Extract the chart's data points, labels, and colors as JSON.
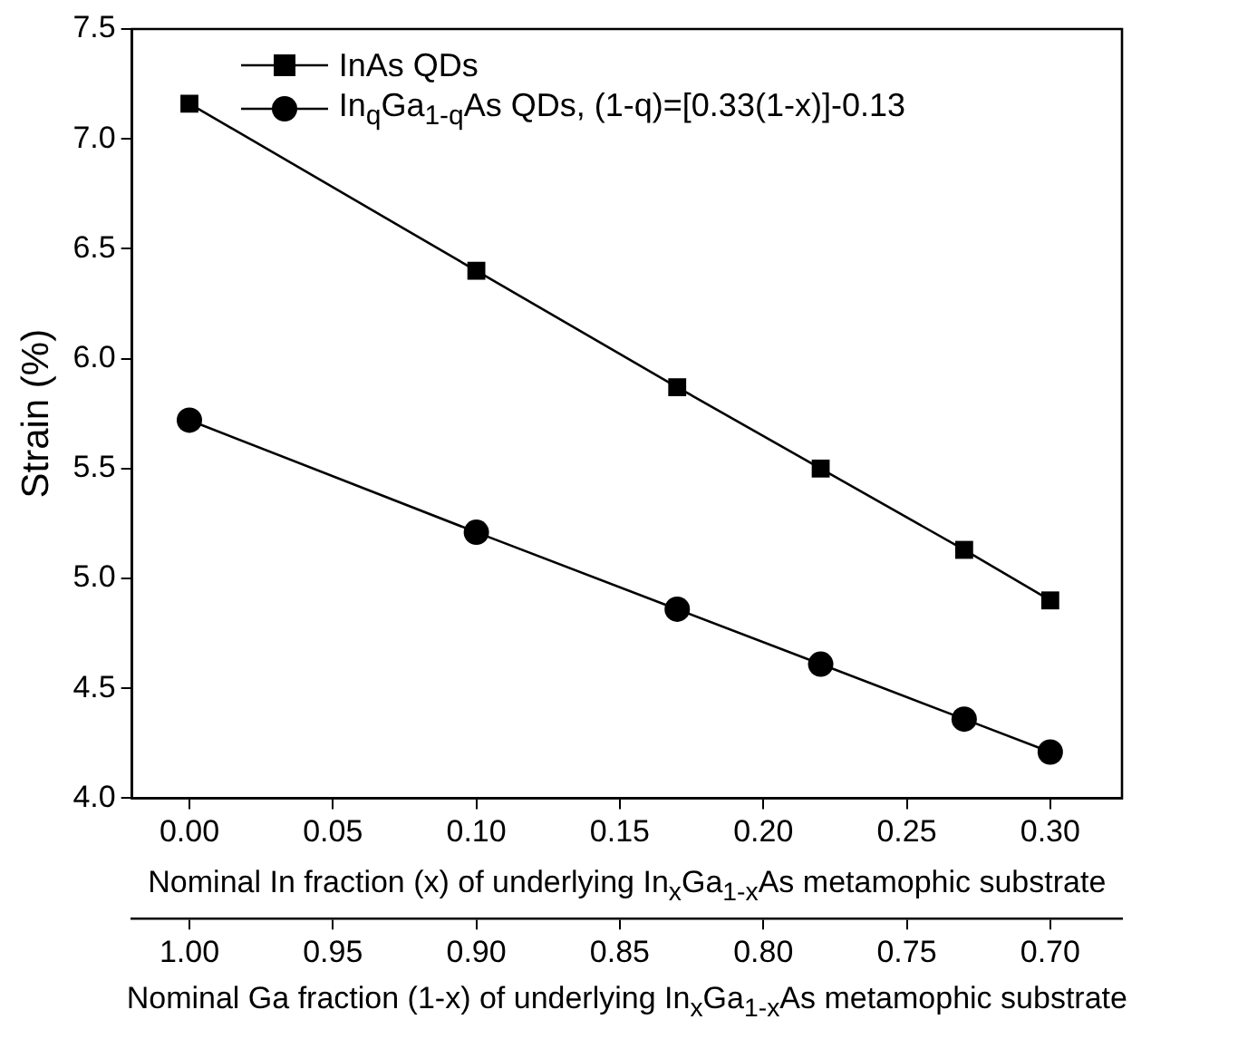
{
  "chart_data": {
    "type": "line",
    "xlabel": "Nominal In fraction (x) of underlying In$_{x}$Ga$_{1-x}$As metamophic substrate",
    "x2label": "Nominal Ga fraction (1-x) of underlying In$_{x}$Ga$_{1-x}$As metamophic substrate",
    "ylabel": "Strain (%)",
    "x": [
      0,
      0.1,
      0.17,
      0.22,
      0.27,
      0.3
    ],
    "series": [
      {
        "name": "InAs QDs",
        "color": "#000000",
        "marker": "square",
        "values": [
          7.16,
          6.4,
          5.87,
          5.5,
          5.13,
          4.9
        ]
      },
      {
        "name": "In$_{q}$Ga$_{1-q}$As QDs, (1-q)=[0.33(1-x)]-0.13",
        "color": "#000000",
        "marker": "circle",
        "values": [
          5.72,
          5.21,
          4.86,
          4.61,
          4.36,
          4.21
        ]
      }
    ],
    "xlim": [
      -0.02,
      0.325
    ],
    "xticks": [
      {
        "value": 0,
        "label": "0.00"
      },
      0.05,
      {
        "value": 0.1,
        "label": "0.10"
      },
      0.15,
      {
        "value": 0.2,
        "label": "0.20"
      },
      0.25,
      {
        "value": 0.3,
        "label": "0.30"
      }
    ],
    "x2lim": [
      1.02,
      0.675
    ],
    "x2ticks": [
      {
        "value": 1,
        "label": "1.00"
      },
      0.95,
      {
        "value": 0.9,
        "label": "0.90"
      },
      0.85,
      {
        "value": 0.8,
        "label": "0.80"
      },
      0.75,
      {
        "value": 0.7,
        "label": "0.70"
      }
    ],
    "ylim": [
      4,
      7.5
    ],
    "yticks": [
      {
        "value": 4,
        "label": "4.0"
      },
      4.5,
      {
        "value": 5,
        "label": "5.0"
      },
      5.5,
      {
        "value": 6,
        "label": "6.0"
      },
      6.5,
      {
        "value": 7,
        "label": "7.0"
      },
      7.5
    ],
    "grid": false,
    "legend": "top left",
    "line_style": "solid"
  }
}
